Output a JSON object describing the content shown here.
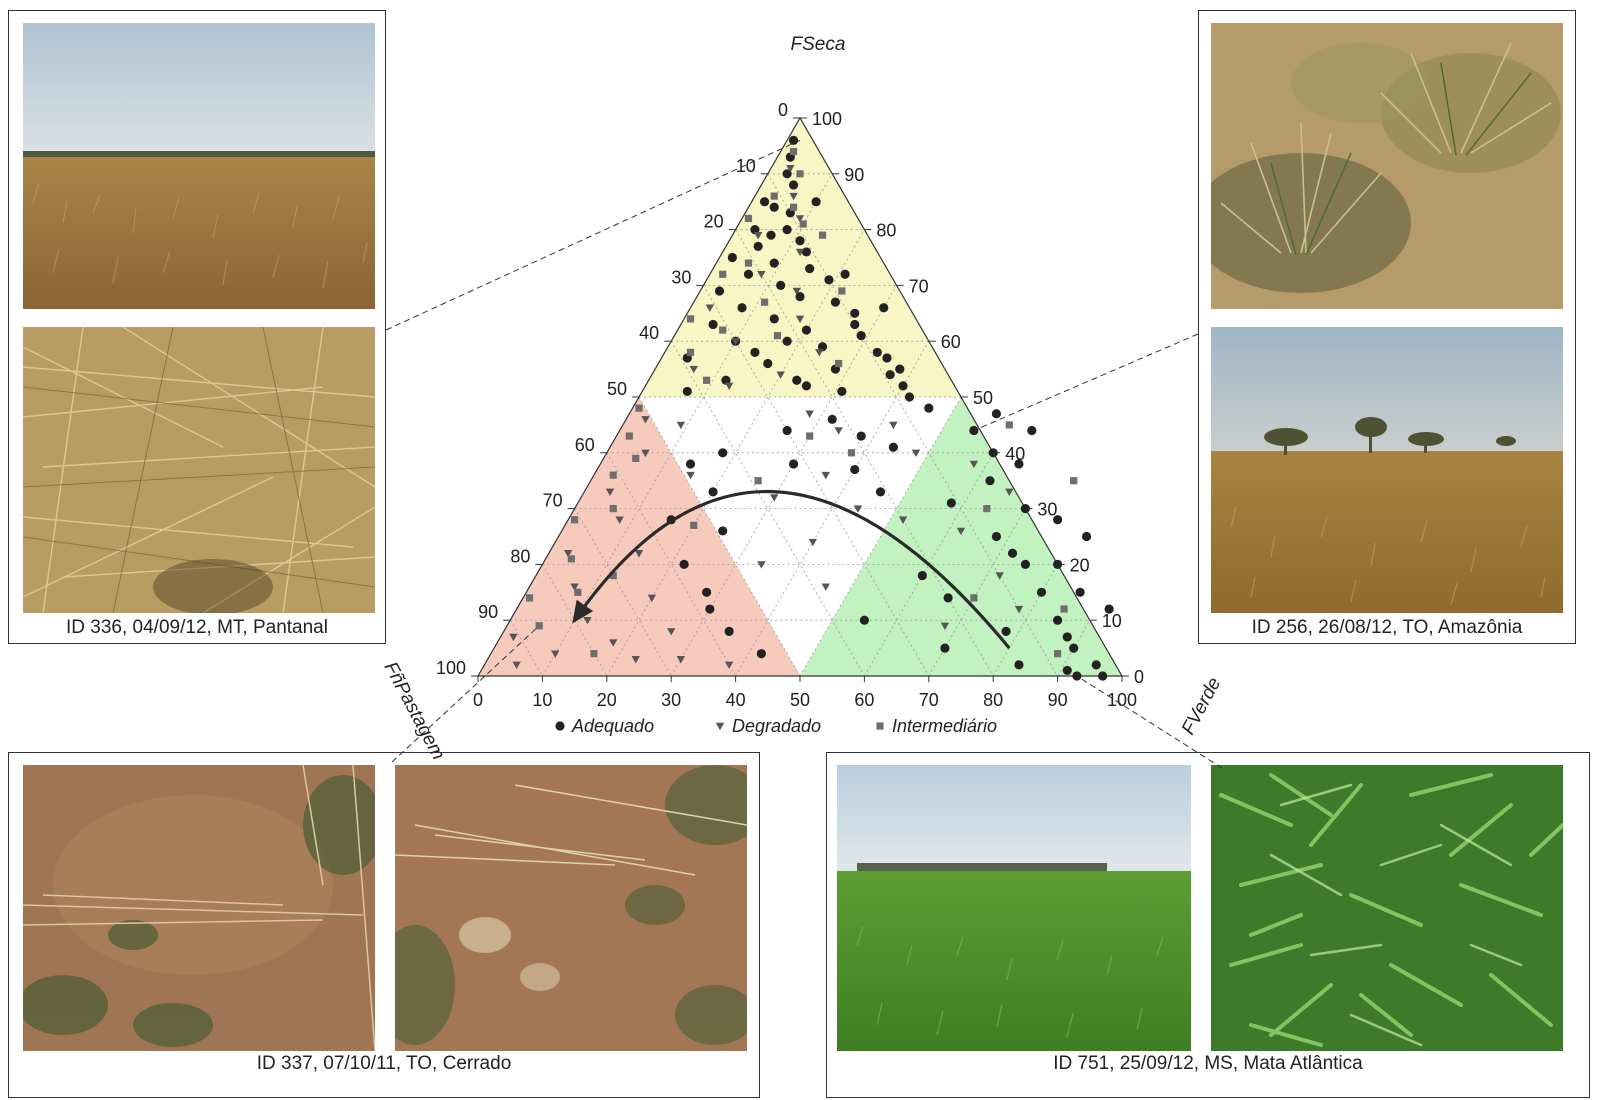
{
  "panels": {
    "top_left_caption": "ID 336, 04/09/12, MT, Pantanal",
    "top_right_caption": "ID 256, 26/08/12, TO, Amazônia",
    "bottom_left_caption": "ID 337, 07/10/11, TO, Cerrado",
    "bottom_right_caption": "ID 751, 25/09/12, MS, Mata Atlântica"
  },
  "photo_scenes": {
    "pantanal_landscape": "dry-grass-field-under-haze",
    "pantanal_closeup": "dry-straw-closeup",
    "amazonia_closeup": "grass-tussocks-dry-ground",
    "amazonia_landscape": "savanna-with-scattered-trees",
    "cerrado_soil_1": "bare-soil-sparse-grass",
    "cerrado_soil_2": "bare-soil-dung-pats",
    "mata_landscape": "green-pasture-field",
    "mata_closeup": "green-grass-closeup"
  },
  "colors": {
    "zone_dry": "#f7f6c4",
    "zone_degraded": "#f6cbbd",
    "zone_green": "#c2f2c0",
    "marker_adequado": "#222222",
    "marker_degradado": "#555555",
    "marker_intermediario": "#6e6e6e"
  },
  "chart_data": {
    "type": "scatter",
    "subtype": "ternary",
    "axes": {
      "top": "FSeca",
      "left": "FñPastagem",
      "right": "FVerde"
    },
    "tick_values": [
      0,
      10,
      20,
      30,
      40,
      50,
      60,
      70,
      80,
      90,
      100
    ],
    "tick_labels": [
      "0",
      "10",
      "20",
      "30",
      "40",
      "50",
      "60",
      "70",
      "80",
      "90",
      "100"
    ],
    "grid": true,
    "regions": [
      {
        "name": "zone_dry",
        "rule": "FSeca >= 50"
      },
      {
        "name": "zone_degraded",
        "rule": "FñPastagem >= 50"
      },
      {
        "name": "zone_green",
        "rule": "FVerde >= 50"
      }
    ],
    "arrow": {
      "from": [
        80,
        5
      ],
      "via": [
        30,
        33
      ],
      "to": [
        10,
        10
      ],
      "note": "points as [FVerde, FSeca]"
    },
    "legend": {
      "placement": "bottom",
      "entries": [
        "Adequado",
        "Degradado",
        "Intermediário"
      ]
    },
    "series": [
      {
        "name": "Adequado",
        "marker": "circle",
        "points": [
          [
            1,
            96
          ],
          [
            2,
            93
          ],
          [
            3,
            90
          ],
          [
            5,
            88
          ],
          [
            2,
            85
          ],
          [
            4,
            84
          ],
          [
            7,
            83
          ],
          [
            3,
            80
          ],
          [
            8,
            80
          ],
          [
            11,
            78
          ],
          [
            5,
            77
          ],
          [
            13,
            76
          ],
          [
            2,
            75
          ],
          [
            9,
            74
          ],
          [
            15,
            73
          ],
          [
            6,
            72
          ],
          [
            19,
            71
          ],
          [
            12,
            70
          ],
          [
            3,
            69
          ],
          [
            16,
            68
          ],
          [
            22,
            67
          ],
          [
            8,
            66
          ],
          [
            26,
            65
          ],
          [
            14,
            64
          ],
          [
            5,
            63
          ],
          [
            20,
            62
          ],
          [
            29,
            61
          ],
          [
            10,
            60
          ],
          [
            24,
            59
          ],
          [
            33,
            58
          ],
          [
            4,
            57
          ],
          [
            17,
            56
          ],
          [
            28,
            55
          ],
          [
            37,
            54
          ],
          [
            12,
            53
          ],
          [
            23,
            53
          ],
          [
            40,
            52
          ],
          [
            7,
            51
          ],
          [
            31,
            51
          ],
          [
            18,
            60
          ],
          [
            35,
            57
          ],
          [
            27,
            63
          ],
          [
            21,
            72
          ],
          [
            10,
            85
          ],
          [
            25,
            52
          ],
          [
            14,
            58
          ],
          [
            30,
            66
          ],
          [
            6,
            79
          ],
          [
            42,
            50
          ],
          [
            38,
            55
          ],
          [
            32,
            46
          ],
          [
            38,
            43
          ],
          [
            44,
            41
          ],
          [
            30,
            38
          ],
          [
            40,
            37
          ],
          [
            46,
            33
          ],
          [
            26,
            44
          ],
          [
            46,
            48
          ],
          [
            55,
            44
          ],
          [
            60,
            40
          ],
          [
            65,
            38
          ],
          [
            70,
            30
          ],
          [
            68,
            25
          ],
          [
            75,
            20
          ],
          [
            80,
            15
          ],
          [
            85,
            10
          ],
          [
            90,
            5
          ],
          [
            95,
            2
          ],
          [
            93,
            0
          ],
          [
            62,
            35
          ],
          [
            58,
            31
          ],
          [
            72,
            22
          ],
          [
            78,
            8
          ],
          [
            83,
            2
          ],
          [
            66,
            14
          ],
          [
            88,
            7
          ],
          [
            92,
            12
          ],
          [
            76,
            28
          ],
          [
            57,
            47
          ],
          [
            64,
            44
          ],
          [
            80,
            20
          ],
          [
            70,
            5
          ],
          [
            82,
            25
          ],
          [
            86,
            15
          ],
          [
            60,
            18
          ],
          [
            55,
            10
          ],
          [
            97,
            0
          ],
          [
            91,
            1
          ],
          [
            18,
            40
          ],
          [
            14,
            38
          ],
          [
            20,
            33
          ],
          [
            16,
            28
          ],
          [
            22,
            20
          ],
          [
            28,
            15
          ],
          [
            35,
            8
          ],
          [
            42,
            4
          ],
          [
            25,
            26
          ],
          [
            30,
            12
          ]
        ]
      },
      {
        "name": "Degradado",
        "marker": "triangle-down",
        "points": [
          [
            3,
            91
          ],
          [
            6,
            86
          ],
          [
            9,
            82
          ],
          [
            4,
            79
          ],
          [
            12,
            76
          ],
          [
            8,
            72
          ],
          [
            15,
            69
          ],
          [
            3,
            66
          ],
          [
            18,
            64
          ],
          [
            10,
            60
          ],
          [
            24,
            58
          ],
          [
            6,
            55
          ],
          [
            20,
            54
          ],
          [
            13,
            52
          ],
          [
            28,
            47
          ],
          [
            34,
            44
          ],
          [
            42,
            45
          ],
          [
            48,
            40
          ],
          [
            36,
            36
          ],
          [
            30,
            32
          ],
          [
            44,
            30
          ],
          [
            40,
            24
          ],
          [
            52,
            28
          ],
          [
            34,
            20
          ],
          [
            46,
            16
          ],
          [
            3,
            46
          ],
          [
            6,
            40
          ],
          [
            4,
            33
          ],
          [
            8,
            28
          ],
          [
            3,
            22
          ],
          [
            7,
            16
          ],
          [
            12,
            10
          ],
          [
            2,
            7
          ],
          [
            10,
            4
          ],
          [
            15,
            36
          ],
          [
            9,
            45
          ],
          [
            5,
            2
          ],
          [
            18,
            6
          ],
          [
            23,
            3
          ],
          [
            14,
            22
          ],
          [
            20,
            14
          ],
          [
            26,
            8
          ],
          [
            30,
            3
          ],
          [
            38,
            2
          ],
          [
            58,
            38
          ],
          [
            66,
            33
          ],
          [
            72,
            18
          ],
          [
            78,
            12
          ],
          [
            62,
            26
          ],
          [
            68,
            9
          ]
        ]
      },
      {
        "name": "Intermediário",
        "marker": "square",
        "points": [
          [
            2,
            94
          ],
          [
            5,
            90
          ],
          [
            3,
            86
          ],
          [
            7,
            84
          ],
          [
            1,
            82
          ],
          [
            10,
            81
          ],
          [
            5,
            74
          ],
          [
            14,
            79
          ],
          [
            2,
            72
          ],
          [
            11,
            67
          ],
          [
            7,
            62
          ],
          [
            22,
            69
          ],
          [
            16,
            61
          ],
          [
            4,
            58
          ],
          [
            28,
            56
          ],
          [
            1,
            64
          ],
          [
            9,
            53
          ],
          [
            30,
            43
          ],
          [
            38,
            40
          ],
          [
            26,
            35
          ],
          [
            1,
            48
          ],
          [
            2,
            43
          ],
          [
            5,
            39
          ],
          [
            3,
            36
          ],
          [
            6,
            30
          ],
          [
            1,
            28
          ],
          [
            4,
            21
          ],
          [
            8,
            15
          ],
          [
            1,
            14
          ],
          [
            5,
            9
          ],
          [
            16,
            4
          ],
          [
            12,
            18
          ],
          [
            20,
            27
          ],
          [
            64,
            30
          ],
          [
            70,
            14
          ],
          [
            85,
            12
          ],
          [
            60,
            45
          ],
          [
            75,
            35
          ],
          [
            88,
            4
          ]
        ]
      }
    ]
  }
}
